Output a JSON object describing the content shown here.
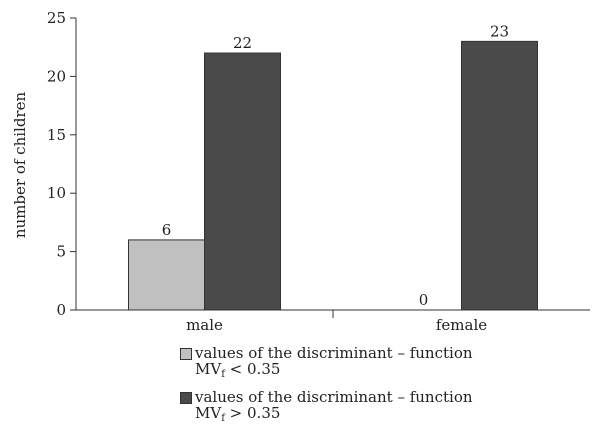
{
  "chart_data": {
    "type": "bar",
    "title": "",
    "xlabel": "",
    "ylabel": "number of children",
    "ylim": [
      0,
      25
    ],
    "yticks": [
      0,
      5,
      10,
      15,
      20,
      25
    ],
    "categories": [
      "male",
      "female"
    ],
    "grid": false,
    "legend_placement": "bottom",
    "series": [
      {
        "key": "lt",
        "legend_prefix": "values of the discriminant – function",
        "legend_mv": "MV",
        "legend_sub": "f",
        "legend_cond": " < 0.35",
        "color": "#c0c0c0",
        "values": [
          6,
          0
        ]
      },
      {
        "key": "gt",
        "legend_prefix": "values of the discriminant – function",
        "legend_mv": "MV",
        "legend_sub": "f",
        "legend_cond": " > 0.35",
        "color": "#4a4a4a",
        "values": [
          22,
          23
        ]
      }
    ]
  }
}
